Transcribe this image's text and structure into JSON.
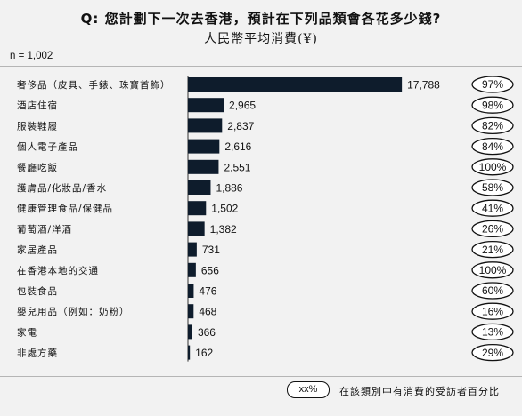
{
  "title": "Q: 您計劃下一次去香港，預計在下列品類會各花多少錢?",
  "subtitle": "人民幣平均消費(¥)",
  "sample": "n = 1,002",
  "legend": {
    "oval_label": "xx%",
    "text": "在該類別中有消費的受訪者百分比"
  },
  "colors": {
    "bar": "#0e1c2c",
    "background": "#f2f2f2",
    "rule": "#b5b5b5"
  },
  "chart_data": {
    "type": "bar",
    "orientation": "horizontal",
    "title": "Q: 您計劃下一次去香港，預計在下列品類會各花多少錢?",
    "subtitle": "人民幣平均消費(¥)",
    "categories": [
      "奢侈品（皮具、手錶、珠寶首飾）",
      "酒店住宿",
      "服裝鞋履",
      "個人電子產品",
      "餐廳吃飯",
      "護膚品/化妝品/香水",
      "健康管理食品/保健品",
      "葡萄酒/洋酒",
      "家居產品",
      "在香港本地的交通",
      "包裝食品",
      "嬰兒用品（例如：奶粉）",
      "家電",
      "非處方藥"
    ],
    "values": [
      17788,
      2965,
      2837,
      2616,
      2551,
      1886,
      1502,
      1382,
      731,
      656,
      476,
      468,
      366,
      162
    ],
    "value_labels": [
      "17,788",
      "2,965",
      "2,837",
      "2,616",
      "2,551",
      "1,886",
      "1,502",
      "1,382",
      "731",
      "656",
      "476",
      "468",
      "366",
      "162"
    ],
    "percentages": [
      "97%",
      "98%",
      "82%",
      "84%",
      "100%",
      "58%",
      "41%",
      "26%",
      "21%",
      "100%",
      "60%",
      "16%",
      "13%",
      "29%"
    ],
    "xlim": [
      0,
      18000
    ],
    "grid": false,
    "legend_position": "bottom-right"
  }
}
